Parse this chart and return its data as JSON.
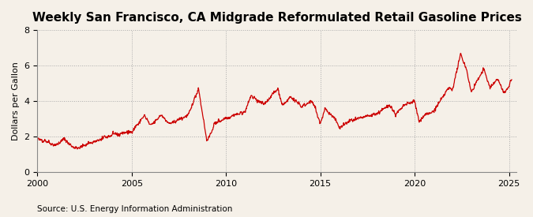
{
  "title": "Weekly San Francisco, CA Midgrade Reformulated Retail Gasoline Prices",
  "ylabel": "Dollars per Gallon",
  "source": "Source: U.S. Energy Information Administration",
  "line_color": "#CC0000",
  "background_color": "#F5F0E8",
  "plot_bg_color": "#F5F0E8",
  "ylim": [
    0,
    8
  ],
  "yticks": [
    0,
    2,
    4,
    6,
    8
  ],
  "grid_color": "#AAAAAA",
  "grid_style": ":",
  "title_fontsize": 11,
  "label_fontsize": 8,
  "source_fontsize": 7.5,
  "linewidth": 0.9
}
